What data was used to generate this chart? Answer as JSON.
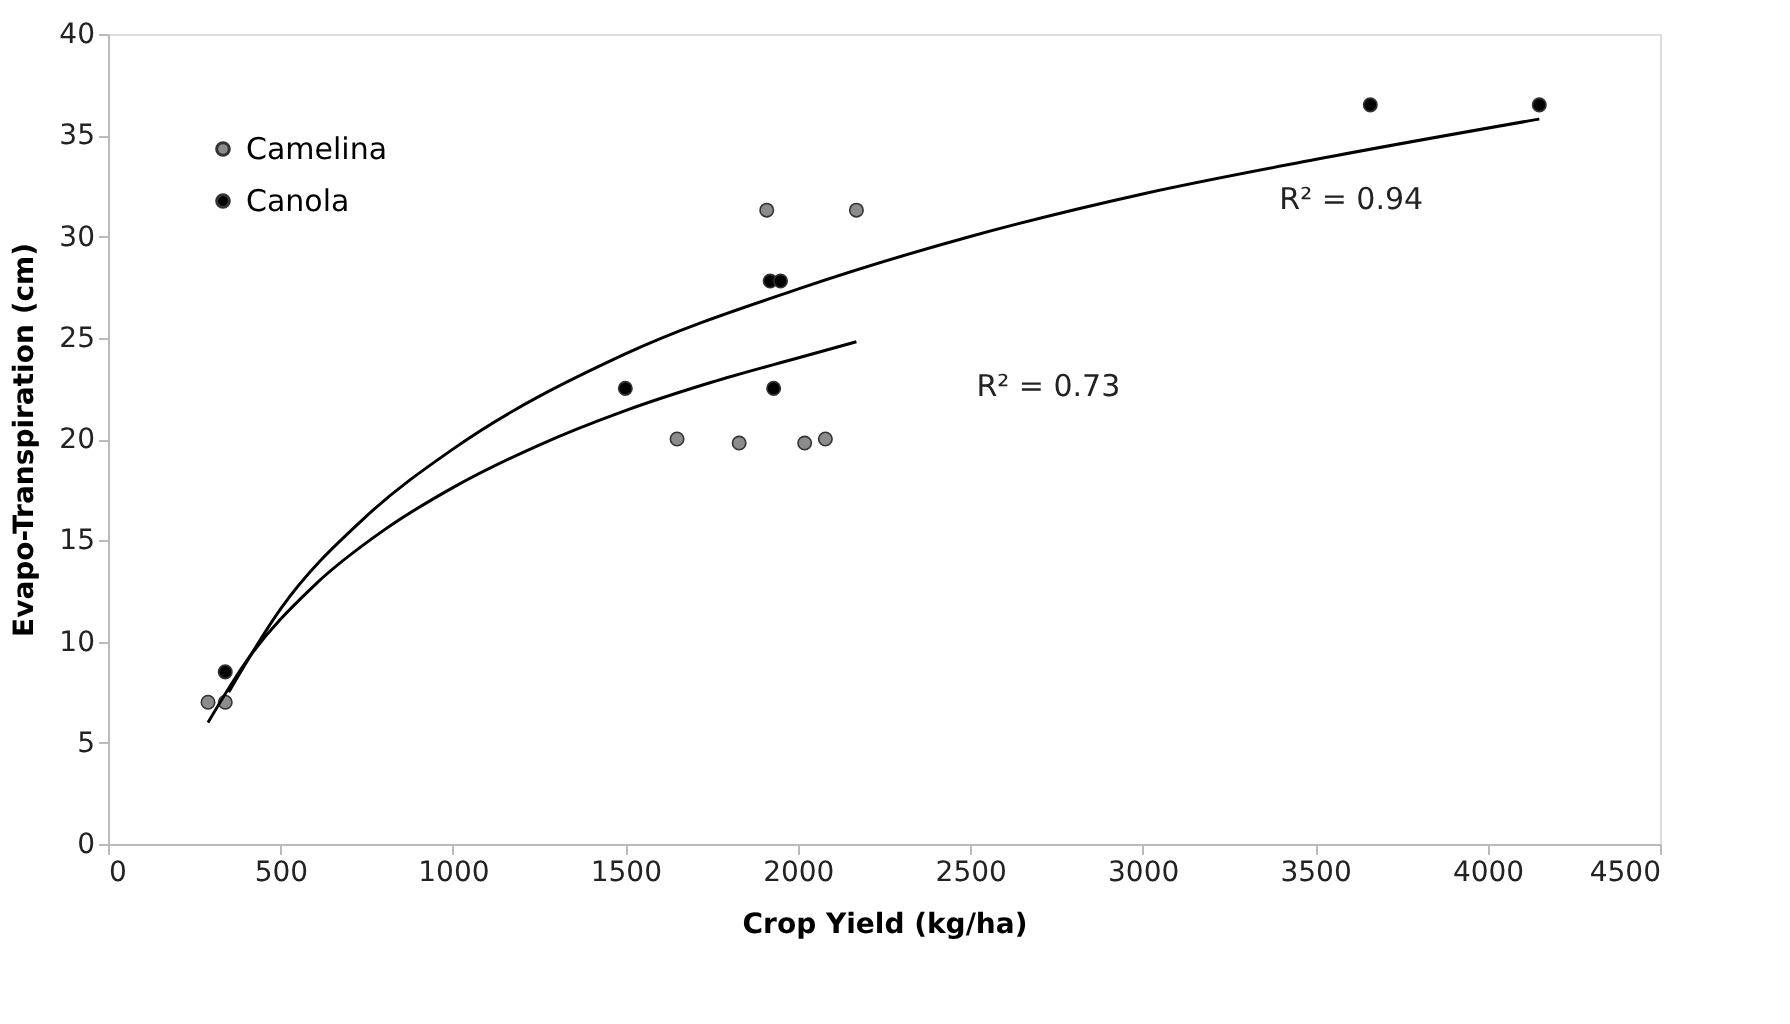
{
  "chart_data": {
    "type": "scatter",
    "xlabel": "Crop Yield (kg/ha)",
    "ylabel": "Evapo-Transpiration (cm)",
    "xlim": [
      0,
      4500
    ],
    "xticks": [
      0,
      500,
      1000,
      1500,
      2000,
      2500,
      3000,
      3500,
      4000,
      4500
    ],
    "ylim": [
      0,
      40
    ],
    "yticks": [
      0,
      5,
      10,
      15,
      20,
      25,
      30,
      35,
      40
    ],
    "grid": false,
    "legend": "top left",
    "series": [
      {
        "name": "Camelina",
        "color": "#8c8c8c",
        "marker": "circle",
        "x": [
          290,
          340,
          1650,
          1830,
          2020,
          2080,
          1910,
          2170
        ],
        "values": [
          7,
          7,
          20,
          19.8,
          19.8,
          20,
          31.3,
          31.3
        ]
      },
      {
        "name": "Canola",
        "color": "#000000",
        "marker": "circle",
        "x": [
          340,
          1500,
          1930,
          1920,
          1950,
          3660,
          4150
        ],
        "values": [
          8.5,
          22.5,
          22.5,
          27.8,
          27.8,
          36.5,
          36.5
        ]
      },
      {
        "type": "line",
        "color": "#000000",
        "marker": "none",
        "line_style": "solid",
        "x": [
          350,
          500,
          750,
          1000,
          1500,
          2000,
          2500,
          3000,
          3500,
          4150
        ],
        "values": [
          7.5,
          11.6,
          16.2,
          19.5,
          24.2,
          27.4,
          30,
          32.1,
          33.8,
          35.8
        ]
      },
      {
        "type": "line",
        "color": "#000000",
        "marker": "none",
        "line_style": "solid",
        "x": [
          290,
          400,
          600,
          800,
          1000,
          1250,
          1500,
          1750,
          2000,
          2170
        ],
        "values": [
          6,
          9,
          12.8,
          15.5,
          17.6,
          19.7,
          21.4,
          22.8,
          24,
          24.8
        ]
      }
    ],
    "annotations": [
      "R² = 0.94",
      "R² = 0.73"
    ]
  }
}
